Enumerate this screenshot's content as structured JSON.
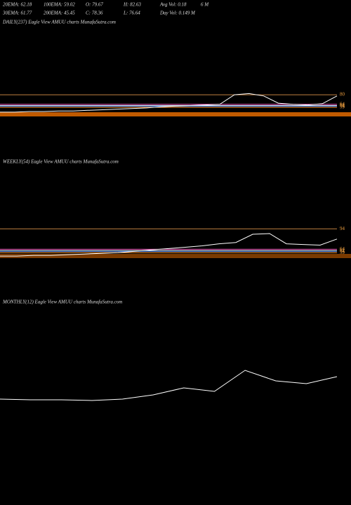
{
  "header": {
    "row1": [
      "20EMA: 62.18",
      "100EMA: 59.02",
      "O: 79.67",
      "H: 82.63",
      "Avg Vol: 0.18",
      "6 M"
    ],
    "row2": [
      "30EMA: 61.77",
      "200EMA: 45.45",
      "C: 78.36",
      "L: 76.64",
      "Day Vol: 0.149 M"
    ]
  },
  "chart_data": [
    {
      "type": "line",
      "title": "DAILY(237) Eagle  View  AMUU charts MunafaSutra.com",
      "color": "#ffffff",
      "values": [
        51,
        51,
        52,
        52,
        53,
        53,
        54,
        55,
        56,
        57,
        58,
        60,
        61,
        62,
        63,
        64,
        80,
        82,
        78,
        66,
        64,
        63,
        65,
        78
      ],
      "ylim": [
        45,
        203
      ],
      "yticks": [
        80,
        64,
        62,
        61,
        59
      ],
      "grid": true
    },
    {
      "type": "line",
      "title": "WEEKLY(54) Eagle  View  AMUU charts MunafaSutra.com",
      "color": "#ffffff",
      "values": [
        54,
        54,
        55,
        55,
        56,
        57,
        58,
        59,
        61,
        63,
        65,
        67,
        69,
        72,
        74,
        86,
        87,
        72,
        71,
        70,
        79
      ],
      "ylim": [
        51,
        190
      ],
      "yticks": [
        94,
        64,
        62,
        61,
        59
      ],
      "grid": true
    },
    {
      "type": "line",
      "title": "MONTHLY(12) Eagle  View  AMUU charts MunafaSutra.com",
      "color": "#ffffff",
      "values": [
        36,
        35,
        35,
        34,
        36,
        42,
        52,
        47,
        77,
        62,
        58,
        68
      ],
      "ylim": [
        20,
        170
      ],
      "grid": false
    }
  ]
}
